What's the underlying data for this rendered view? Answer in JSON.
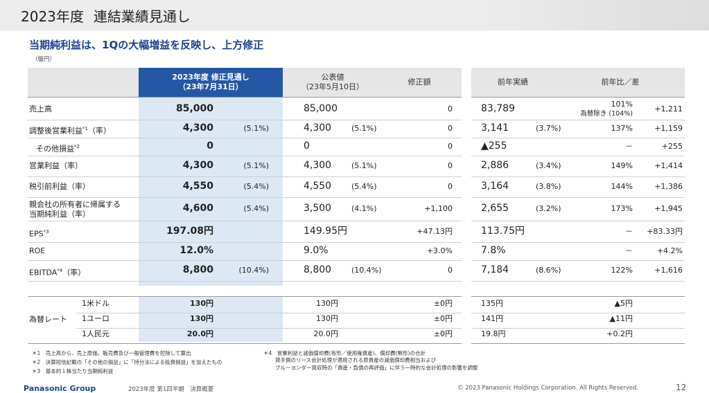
{
  "title": "2023年度",
  "title_sub": "連結業績見通し",
  "subtitle": "当期純利益は、1Qの大幅増益を反映し、上方修正",
  "unit": "（億円）",
  "headers": {
    "forecast": "2023年度 修正見通し",
    "forecast_date": "（23年7月31日）",
    "published": "公表値",
    "published_date": "（23年5月10日）",
    "revision": "修正額",
    "prev": "前年実績",
    "yoy": "前年比／差"
  },
  "rows": [
    {
      "label": "売上高",
      "sup": "",
      "fc": "85,000",
      "fc_pct": "",
      "pub": "85,000",
      "pub_pct": "",
      "rev": "0",
      "prev": "83,789",
      "prev_pct": "",
      "ratio": "101%",
      "ratio_sub": "為替除き (104%)",
      "diff": "+1,211"
    },
    {
      "label": "調整後営業利益",
      "sup": "*1",
      "label_tail": "（率）",
      "fc": "4,300",
      "fc_pct": "(5.1%)",
      "pub": "4,300",
      "pub_pct": "(5.1%)",
      "rev": "0",
      "prev": "3,141",
      "prev_pct": "(3.7%)",
      "ratio": "137%",
      "ratio_sub": "",
      "diff": "+1,159"
    },
    {
      "label": "その他損益",
      "sup": "*2",
      "fc": "0",
      "fc_pct": "",
      "pub": "0",
      "pub_pct": "",
      "rev": "0",
      "prev": "▲255",
      "prev_pct": "",
      "ratio": "－",
      "ratio_sub": "",
      "diff": "+255"
    },
    {
      "label": "営業利益（率）",
      "sup": "",
      "fc": "4,300",
      "fc_pct": "(5.1%)",
      "pub": "4,300",
      "pub_pct": "(5.1%)",
      "rev": "0",
      "prev": "2,886",
      "prev_pct": "(3.4%)",
      "ratio": "149%",
      "ratio_sub": "",
      "diff": "+1,414"
    },
    {
      "label": "税引前利益（率）",
      "sup": "",
      "fc": "4,550",
      "fc_pct": "(5.4%)",
      "pub": "4,550",
      "pub_pct": "(5.4%)",
      "rev": "0",
      "prev": "3,164",
      "prev_pct": "(3.8%)",
      "ratio": "144%",
      "ratio_sub": "",
      "diff": "+1,386"
    },
    {
      "label": "親会社の所有者に帰属する",
      "label2": "当期純利益（率）",
      "sup": "",
      "fc": "4,600",
      "fc_pct": "(5.4%)",
      "pub": "3,500",
      "pub_pct": "(4.1%)",
      "rev": "+1,100",
      "prev": "2,655",
      "prev_pct": "(3.2%)",
      "ratio": "173%",
      "ratio_sub": "",
      "diff": "+1,945"
    },
    {
      "label": "EPS",
      "sup": "*3",
      "fc": "197.08円",
      "fc_pct": "",
      "pub": "149.95円",
      "pub_pct": "",
      "rev": "+47.13円",
      "prev": "113.75円",
      "prev_pct": "",
      "ratio": "－",
      "ratio_sub": "",
      "diff": "+83.33円"
    },
    {
      "label": "ROE",
      "sup": "",
      "fc": "12.0%",
      "fc_pct": "",
      "pub": "9.0%",
      "pub_pct": "",
      "rev": "+3.0%",
      "prev": "7.8%",
      "prev_pct": "",
      "ratio": "－",
      "ratio_sub": "",
      "diff": "+4.2%"
    },
    {
      "label": "EBITDA",
      "sup": "*4",
      "label_tail": "（率）",
      "fc": "8,800",
      "fc_pct": "(10.4%)",
      "pub": "8,800",
      "pub_pct": "(10.4%)",
      "rev": "0",
      "prev": "7,184",
      "prev_pct": "(8.6%)",
      "ratio": "122%",
      "ratio_sub": "",
      "diff": "+1,616"
    }
  ],
  "fx": {
    "label": "為替レート",
    "rows": [
      {
        "cur": "1米ドル",
        "fc": "130円",
        "pub": "130円",
        "rev": "±0円",
        "prev": "135円",
        "diff": "▲5円"
      },
      {
        "cur": "1ユーロ",
        "fc": "130円",
        "pub": "130円",
        "rev": "±0円",
        "prev": "141円",
        "diff": "▲11円"
      },
      {
        "cur": "1人民元",
        "fc": "20.0円",
        "pub": "20.0円",
        "rev": "±0円",
        "prev": "19.8円",
        "diff": "+0.2円"
      }
    ]
  },
  "notes_left": [
    "＊1　売上高から、売上原価、販売費及び一般管理費を控除して算出",
    "＊2　決算短信記載の「その他の損益」に「持分法による投資損益」を加えたもの",
    "＊3　基本的１株当たり当期純利益"
  ],
  "notes_right": [
    "＊4　営業利益と減価償却費(有形／使用権資産)、償却費(無形)の合計",
    "貸手側のリース会計処理が適用される原資産の減価償却費相当および",
    "ブルーヨンダー買収時の「資産・負債の再評価」に伴う一時的な会計処理の影響を調整"
  ],
  "footer": {
    "logo": "Panasonic Group",
    "doc": "2023年度 第1四半期　決算概要",
    "copyright": "© 2023 Panasonic Holdings Corporation. All Rights Reserved.",
    "page": "12"
  }
}
